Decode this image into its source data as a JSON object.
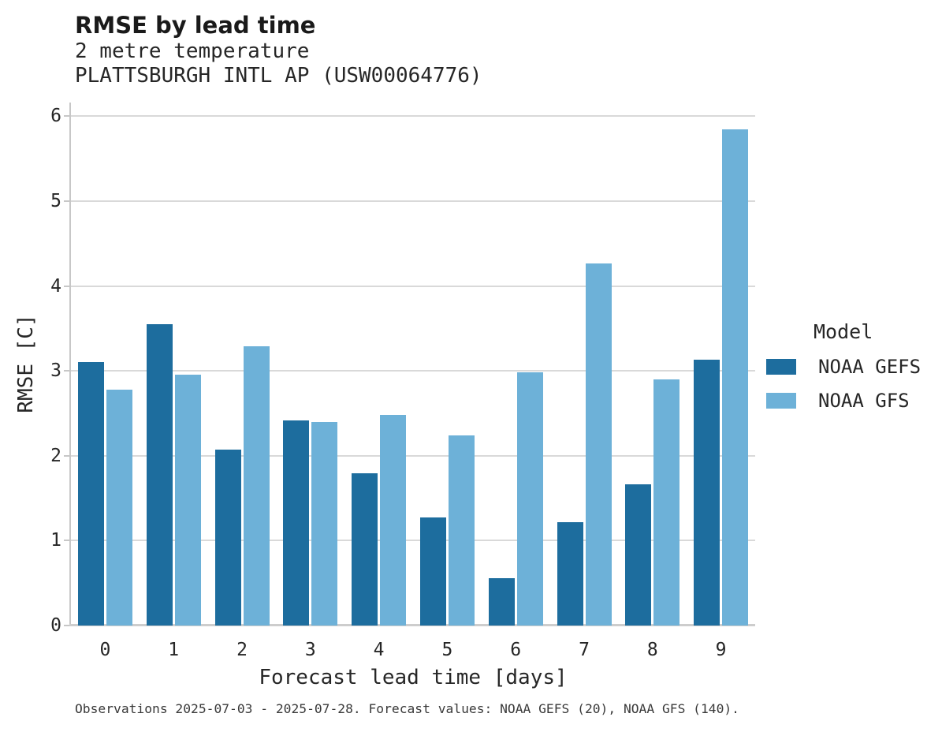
{
  "header": {
    "title": "RMSE by lead time",
    "subtitle1": "2 metre temperature",
    "subtitle2": "PLATTSBURGH INTL AP (USW00064776)"
  },
  "legend": {
    "title": "Model",
    "entries": [
      {
        "label": "NOAA GEFS",
        "color": "#1d6d9e"
      },
      {
        "label": "NOAA GFS",
        "color": "#6db1d8"
      }
    ]
  },
  "footer": {
    "text": "Observations 2025-07-03 - 2025-07-28. Forecast values: NOAA GEFS (20), NOAA GFS (140)."
  },
  "chart_data": {
    "type": "bar",
    "title": "RMSE by lead time",
    "subtitle": [
      "2 metre temperature",
      "PLATTSBURGH INTL AP (USW00064776)"
    ],
    "categories": [
      "0",
      "1",
      "2",
      "3",
      "4",
      "5",
      "6",
      "7",
      "8",
      "9"
    ],
    "series": [
      {
        "name": "NOAA GEFS",
        "color": "#1d6d9e",
        "values": [
          3.1,
          3.55,
          2.07,
          2.42,
          1.79,
          1.27,
          0.56,
          1.22,
          1.66,
          3.13
        ]
      },
      {
        "name": "NOAA GFS",
        "color": "#6db1d8",
        "values": [
          2.78,
          2.96,
          3.29,
          2.4,
          2.48,
          2.24,
          2.98,
          4.27,
          2.9,
          5.85
        ]
      }
    ],
    "xlabel": "Forecast lead time [days]",
    "ylabel": "RMSE [C]",
    "ylim": [
      0,
      6
    ],
    "yticks": [
      0,
      1,
      2,
      3,
      4,
      5,
      6
    ],
    "grid": true,
    "legend_title": "Model",
    "legend_position": "right",
    "annotation": "Observations 2025-07-03 - 2025-07-28. Forecast values: NOAA GEFS (20), NOAA GFS (140)."
  }
}
